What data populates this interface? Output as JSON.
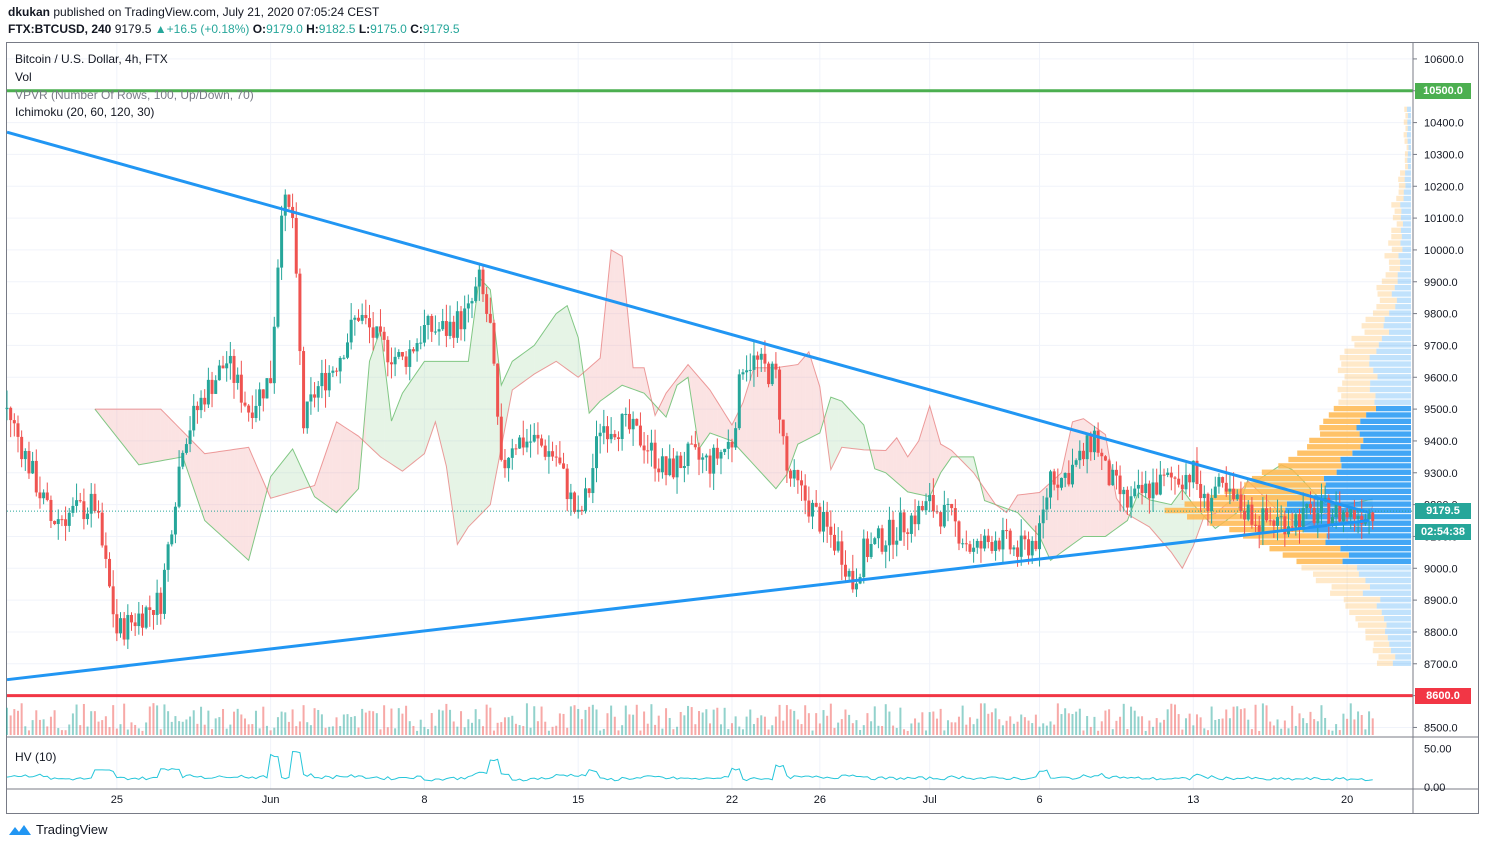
{
  "header": {
    "line1_user": "dkukan",
    "line1_rest": " published on TradingView.com, July 21, 2020 07:05:24 CEST",
    "symbol": "FTX:BTCUSD, 240",
    "last": "9179.5",
    "change_arrow": "▲",
    "change": "+16.5 (+0.18%)",
    "o_label": "O:",
    "o_val": "9179.0",
    "h_label": "H:",
    "h_val": "9182.5",
    "l_label": "L:",
    "l_val": "9175.0",
    "c_label": "C:",
    "c_val": "9179.5"
  },
  "legend": {
    "title": "Bitcoin / U.S. Dollar, 4h, FTX",
    "vol": "Vol",
    "vpvr": "VPVR (Number Of Rows, 100, Up/Down, 70)",
    "ichimoku": "Ichimoku (20, 60, 120, 30)",
    "hv": "HV (10)"
  },
  "price_tags": {
    "resistance": "10500.0",
    "support": "8600.0",
    "last": "9179.5",
    "countdown": "02:54:38"
  },
  "footer": {
    "brand": "TradingView"
  },
  "colors": {
    "up": "#26a69a",
    "down": "#ef5350",
    "trend": "#2196f3",
    "resistance": "#4caf50",
    "support": "#f23645",
    "vp_blue": "#2196f3",
    "vp_orange": "#ffb74d",
    "kumo_green": "#a5d6a7",
    "kumo_red": "#ef9a9a",
    "hv": "#26c6da"
  },
  "chart_data": {
    "type": "candlestick",
    "title": "Bitcoin / U.S. Dollar, 4h, FTX",
    "y_ticks": [
      10600,
      10500,
      10400,
      10300,
      10200,
      10100,
      10000,
      9900,
      9800,
      9700,
      9600,
      9500,
      9400,
      9300,
      9200,
      9100,
      9000,
      8900,
      8800,
      8700,
      8600,
      8500
    ],
    "y_tick_labels": [
      "10600.0",
      "10500.0",
      "10400.0",
      "10300.0",
      "10200.0",
      "10100.0",
      "10000.0",
      "9900.0",
      "9800.0",
      "9700.0",
      "9600.0",
      "9500.0",
      "9400.0",
      "9300.0",
      "9200.0",
      "9100.0",
      "9000.0",
      "8900.0",
      "8800.0",
      "8700.0",
      "8600.0",
      "8500.0"
    ],
    "ylim": [
      8470,
      10650
    ],
    "x_tick_labels": [
      "25",
      "Jun",
      "8",
      "15",
      "22",
      "26",
      "Jul",
      "6",
      "13",
      "20"
    ],
    "x_start": "2020-05-20",
    "x_end": "2020-07-23",
    "x_tick_dates": [
      "2020-05-25",
      "2020-06-01",
      "2020-06-08",
      "2020-06-15",
      "2020-06-22",
      "2020-06-26",
      "2020-07-01",
      "2020-07-06",
      "2020-07-13",
      "2020-07-20"
    ],
    "horizontal_lines": [
      {
        "price": 10500,
        "label": "10500.0",
        "color": "#4caf50"
      },
      {
        "price": 8600,
        "label": "8600.0",
        "color": "#f23645"
      }
    ],
    "trendlines": [
      {
        "from": [
          "2020-05-20",
          10370
        ],
        "to": [
          "2020-07-21",
          9175
        ]
      },
      {
        "from": [
          "2020-05-20",
          8650
        ],
        "to": [
          "2020-07-21",
          9150
        ]
      }
    ],
    "last_price": 9179.5,
    "close_path": [
      [
        "2020-05-20",
        9500
      ],
      [
        "2020-05-22",
        9150
      ],
      [
        "2020-05-24",
        9200
      ],
      [
        "2020-05-25",
        8800
      ],
      [
        "2020-05-26",
        8850
      ],
      [
        "2020-05-27",
        8900
      ],
      [
        "2020-05-28",
        9400
      ],
      [
        "2020-05-29",
        9550
      ],
      [
        "2020-05-30",
        9650
      ],
      [
        "2020-05-31",
        9500
      ],
      [
        "2020-06-01",
        9600
      ],
      [
        "2020-06-01T12",
        10150
      ],
      [
        "2020-06-02",
        10100
      ],
      [
        "2020-06-02T12",
        9450
      ],
      [
        "2020-06-03",
        9550
      ],
      [
        "2020-06-04",
        9650
      ],
      [
        "2020-06-05",
        9800
      ],
      [
        "2020-06-06",
        9700
      ],
      [
        "2020-06-07",
        9650
      ],
      [
        "2020-06-08",
        9750
      ],
      [
        "2020-06-09",
        9750
      ],
      [
        "2020-06-10",
        9800
      ],
      [
        "2020-06-10T12",
        9900
      ],
      [
        "2020-06-11",
        9750
      ],
      [
        "2020-06-11T12",
        9300
      ],
      [
        "2020-06-12",
        9400
      ],
      [
        "2020-06-13",
        9400
      ],
      [
        "2020-06-14",
        9350
      ],
      [
        "2020-06-15",
        9150
      ],
      [
        "2020-06-15T12",
        9250
      ],
      [
        "2020-06-16",
        9450
      ],
      [
        "2020-06-17",
        9450
      ],
      [
        "2020-06-18",
        9400
      ],
      [
        "2020-06-19",
        9300
      ],
      [
        "2020-06-20",
        9350
      ],
      [
        "2020-06-21",
        9330
      ],
      [
        "2020-06-22",
        9400
      ],
      [
        "2020-06-22T12",
        9650
      ],
      [
        "2020-06-23",
        9650
      ],
      [
        "2020-06-24",
        9600
      ],
      [
        "2020-06-24T12",
        9300
      ],
      [
        "2020-06-25",
        9250
      ],
      [
        "2020-06-26",
        9150
      ],
      [
        "2020-06-27",
        9050
      ],
      [
        "2020-06-27T12",
        8950
      ],
      [
        "2020-06-28",
        9050
      ],
      [
        "2020-06-29",
        9100
      ],
      [
        "2020-06-30",
        9150
      ],
      [
        "2020-07-01",
        9200
      ],
      [
        "2020-07-02",
        9150
      ],
      [
        "2020-07-03",
        9050
      ],
      [
        "2020-07-04",
        9100
      ],
      [
        "2020-07-05",
        9050
      ],
      [
        "2020-07-06",
        9100
      ],
      [
        "2020-07-06T12",
        9300
      ],
      [
        "2020-07-07",
        9280
      ],
      [
        "2020-07-08",
        9350
      ],
      [
        "2020-07-08T12",
        9420
      ],
      [
        "2020-07-09",
        9300
      ],
      [
        "2020-07-10",
        9200
      ],
      [
        "2020-07-11",
        9250
      ],
      [
        "2020-07-12",
        9280
      ],
      [
        "2020-07-13",
        9300
      ],
      [
        "2020-07-13T12",
        9200
      ],
      [
        "2020-07-14",
        9250
      ],
      [
        "2020-07-15",
        9200
      ],
      [
        "2020-07-16",
        9150
      ],
      [
        "2020-07-17",
        9150
      ],
      [
        "2020-07-18",
        9160
      ],
      [
        "2020-07-19",
        9180
      ],
      [
        "2020-07-20",
        9170
      ],
      [
        "2020-07-21",
        9179.5
      ]
    ],
    "hv": {
      "y_ticks": [
        50,
        0
      ],
      "y_tick_labels": [
        "50.00",
        "0.00"
      ]
    }
  }
}
